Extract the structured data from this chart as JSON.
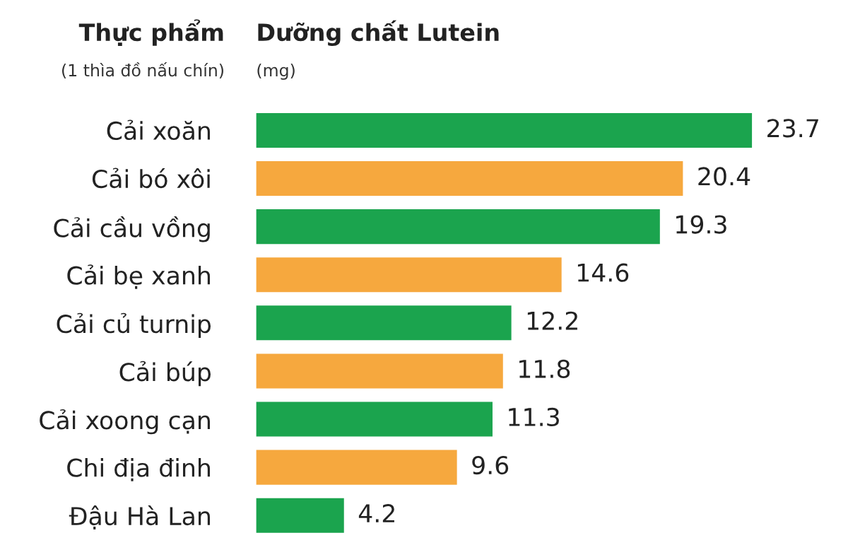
{
  "chart_data": {
    "type": "bar",
    "orientation": "horizontal",
    "title": "Dưỡng chất Lutein",
    "subtitle": "(mg)",
    "ylabel": "Thực phẩm",
    "annotations": [
      "(1 thìa đồ nấu chín)"
    ],
    "categories": [
      "Cải xoăn",
      "Cải bó xôi",
      "Cải cầu vồng",
      "Cải bẹ xanh",
      "Cải củ turnip",
      "Cải búp",
      "Cải xoong cạn",
      "Chi địa đinh",
      "Đậu Hà Lan"
    ],
    "values": [
      23.7,
      20.4,
      19.3,
      14.6,
      12.2,
      11.8,
      11.3,
      9.6,
      4.2
    ],
    "colors": [
      "#1ba44e",
      "#f6a83e",
      "#1ba44e",
      "#f6a83e",
      "#1ba44e",
      "#f6a83e",
      "#1ba44e",
      "#f6a83e",
      "#1ba44e"
    ],
    "data_labels": true,
    "grid": false,
    "legend": false
  }
}
